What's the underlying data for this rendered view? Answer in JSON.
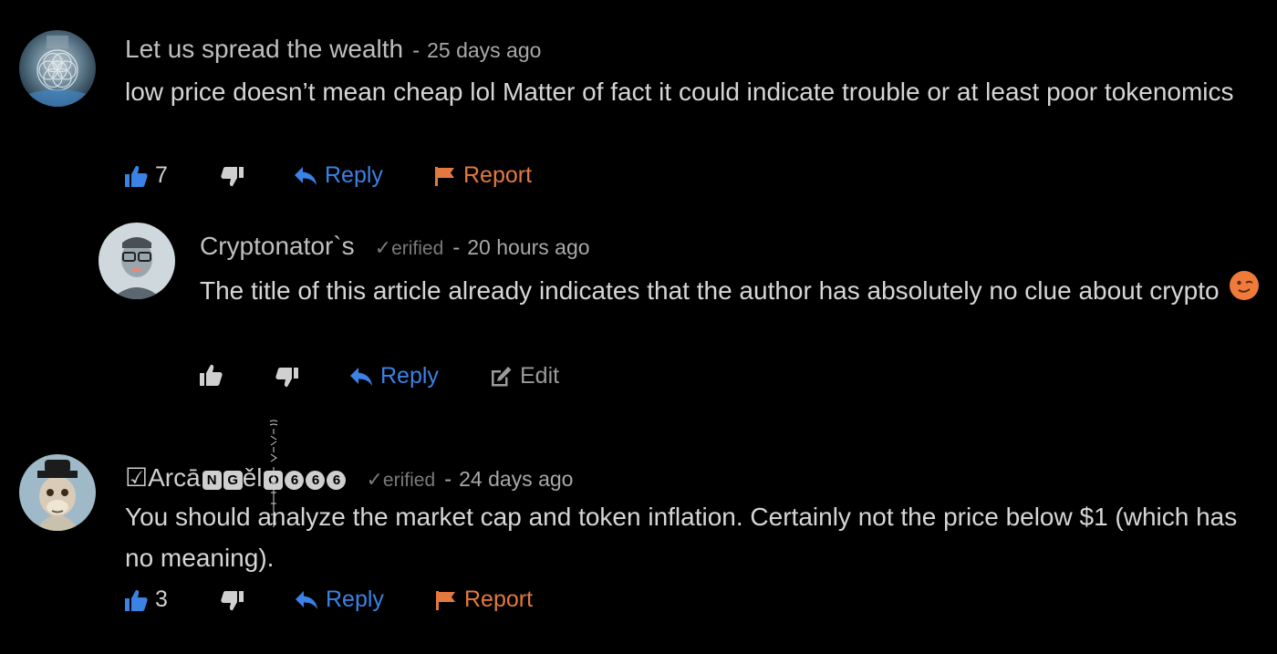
{
  "comments": [
    {
      "author": "Let us spread the wealth",
      "verified": "",
      "time": "25 days ago",
      "body": "low price doesn’t mean cheap lol Matter of fact it could indicate trouble or at least poor tokenomics",
      "likes": "7",
      "reply_label": "Reply",
      "secondary_label": "Report",
      "avatar": "mandala-avatar"
    },
    {
      "author": "Cryptonator`s",
      "verified": "erified",
      "time": "20 hours ago",
      "body": "The title of this article already indicates that the author has absolutely no clue about crypto",
      "likes": "",
      "reply_label": "Reply",
      "secondary_label": "Edit",
      "avatar": "person-glasses-avatar"
    },
    {
      "author_prefix": "☑Arcā",
      "author_badges": [
        "N",
        "G"
      ],
      "author_mid": "ěl",
      "author_badges2": [
        "O"
      ],
      "author_round_badges": [
        "6",
        "6",
        "6"
      ],
      "verified": "erified",
      "time": "24 days ago",
      "body": "You should analyze the market cap and token inflation. Certainly not the price below $1 (which has no meaning).",
      "likes": "3",
      "reply_label": "Reply",
      "secondary_label": "Report",
      "avatar": "ape-avatar"
    }
  ],
  "separator": "-",
  "colors": {
    "background": "#000000",
    "reply": "#3b82e6",
    "report": "#e4793f",
    "like_active": "#3b82e6",
    "text": "#d6d6d6",
    "muted": "#a8a8a8"
  }
}
